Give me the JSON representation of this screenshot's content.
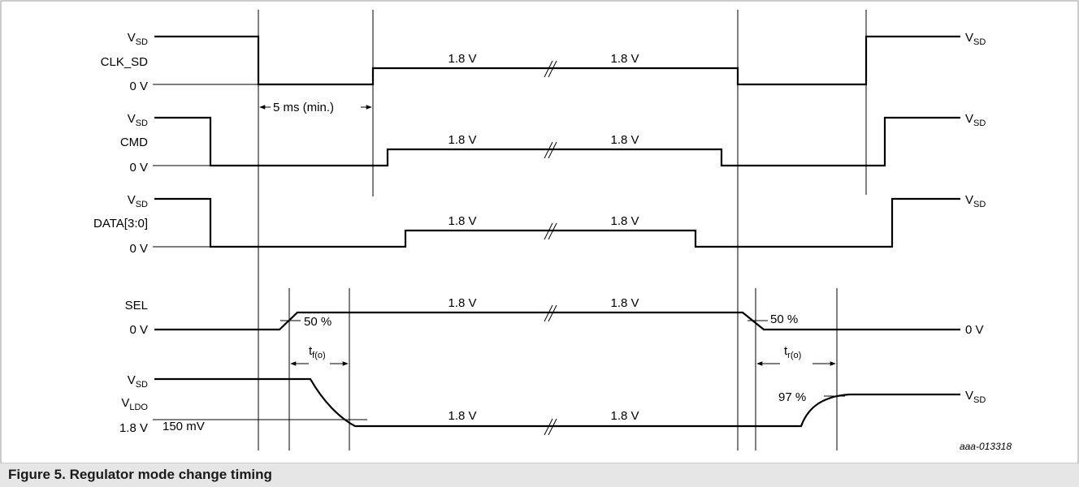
{
  "figure": {
    "caption": "Figure 5. Regulator mode change timing",
    "reference_id": "aaa-013318",
    "unit_left": "V",
    "unit_sub": "SD"
  },
  "signals": {
    "clk_sd": {
      "name": "CLK_SD",
      "low_label": "0 V",
      "mid_left": "1.8 V",
      "mid_right": "1.8 V"
    },
    "cmd": {
      "name": "CMD",
      "low_label": "0 V",
      "mid_left": "1.8 V",
      "mid_right": "1.8 V"
    },
    "data": {
      "name": "DATA[3:0]",
      "low_label": "0 V",
      "mid_left": "1.8 V",
      "mid_right": "1.8 V"
    },
    "sel": {
      "name": "SEL",
      "low_label": "0 V",
      "right_label": "0 V",
      "mid_left": "1.8 V",
      "mid_right": "1.8 V",
      "threshold_left": "50 %",
      "threshold_right": "50 %"
    },
    "vldo": {
      "name": "V",
      "name_sub": "LDO",
      "low_label": "1.8 V",
      "mid_left": "1.8 V",
      "mid_right": "1.8 V",
      "ripple": "150 mV",
      "threshold": "97 %"
    }
  },
  "timings": {
    "min_delay": "5 ms (min.)",
    "t_fall": "t",
    "t_fall_sub": "f(o)",
    "t_rise": "t",
    "t_rise_sub": "r(o)"
  }
}
